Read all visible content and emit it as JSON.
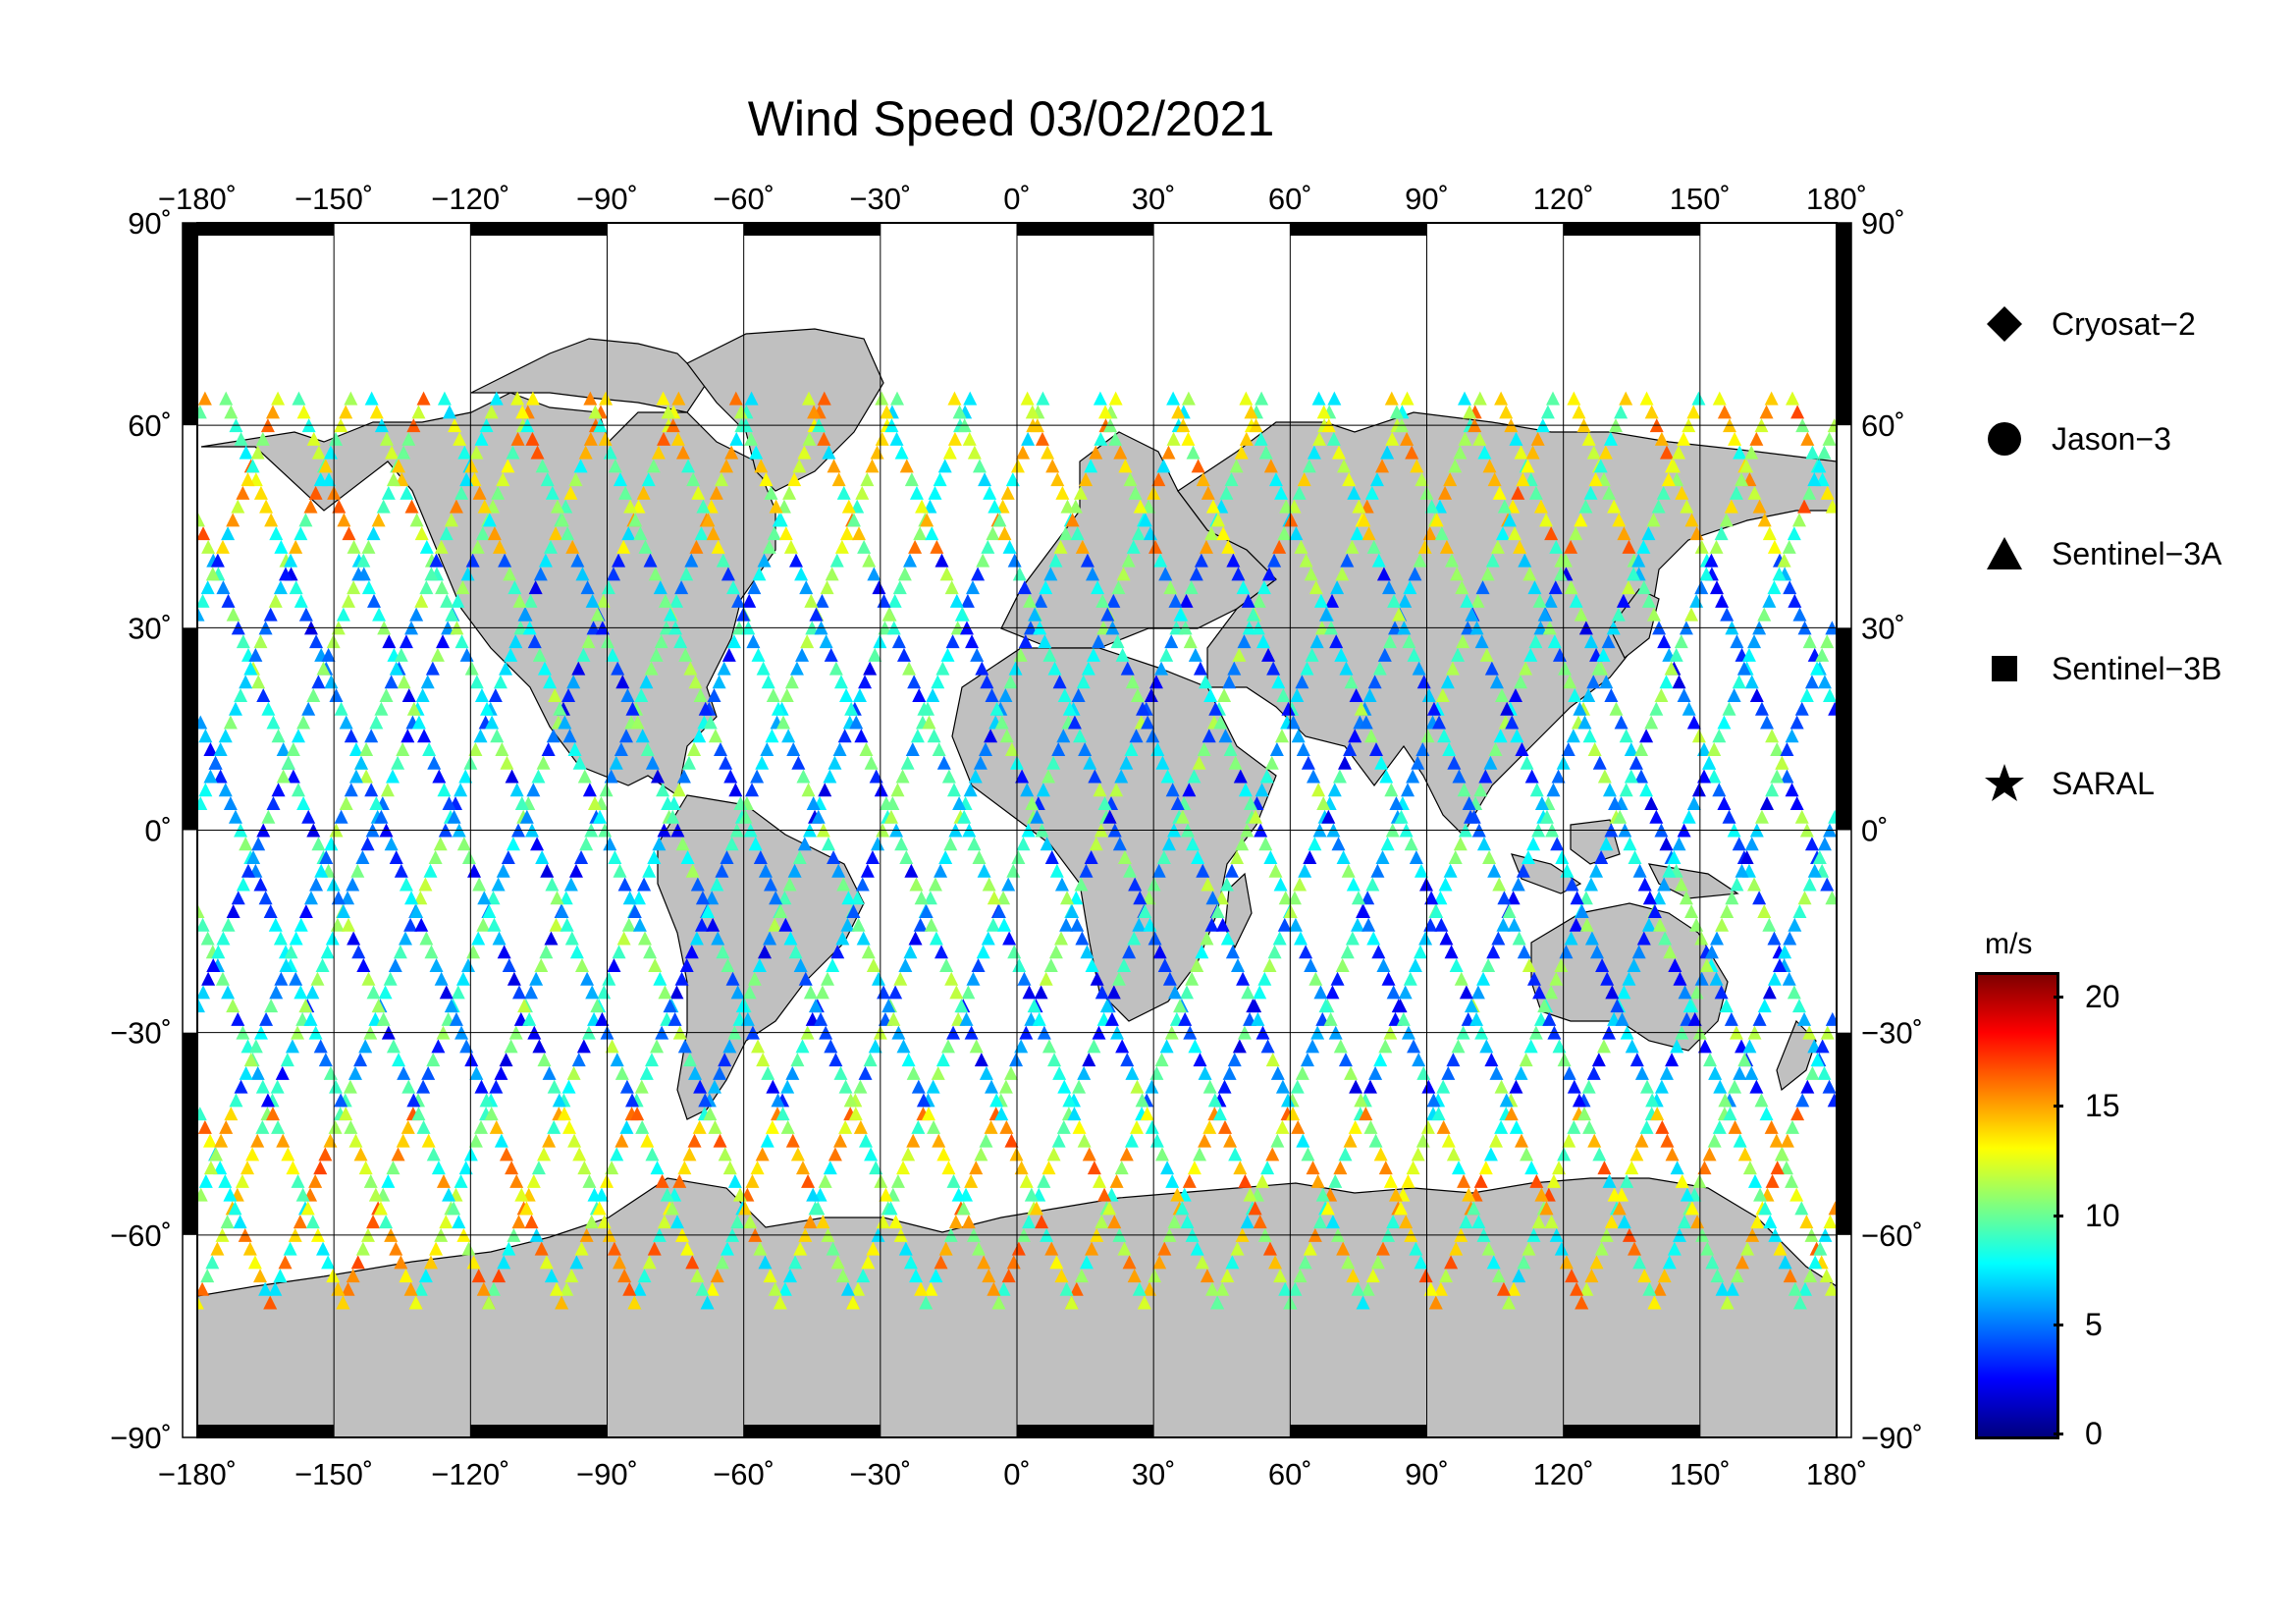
{
  "title": "Wind Speed 03/02/2021",
  "map": {
    "lon_ticks": [
      "−180˚",
      "−150˚",
      "−120˚",
      "−90˚",
      "−60˚",
      "−30˚",
      "0˚",
      "30˚",
      "60˚",
      "90˚",
      "120˚",
      "150˚",
      "180˚"
    ],
    "lat_ticks_left": [
      "90˚",
      "60˚",
      "30˚",
      "0˚",
      "−30˚",
      "−60˚",
      "−90˚"
    ],
    "lat_ticks_right": [
      "90˚",
      "60˚",
      "30˚",
      "0˚",
      "−30˚",
      "−60˚",
      "−90˚"
    ],
    "lon_range": [
      -180,
      180
    ],
    "lat_range": [
      -90,
      90
    ],
    "land_color": "#c0c0c0",
    "ocean_color": "#ffffff"
  },
  "legend": {
    "items": [
      {
        "label": "Cryosat−2",
        "marker": "diamond"
      },
      {
        "label": "Jason−3",
        "marker": "circle"
      },
      {
        "label": "Sentinel−3A",
        "marker": "triangle"
      },
      {
        "label": "Sentinel−3B",
        "marker": "square"
      },
      {
        "label": "SARAL",
        "marker": "star"
      }
    ]
  },
  "colorbar": {
    "unit": "m/s",
    "ticks": [
      "20",
      "15",
      "10",
      "5",
      "0"
    ],
    "range": [
      0,
      21
    ]
  }
}
